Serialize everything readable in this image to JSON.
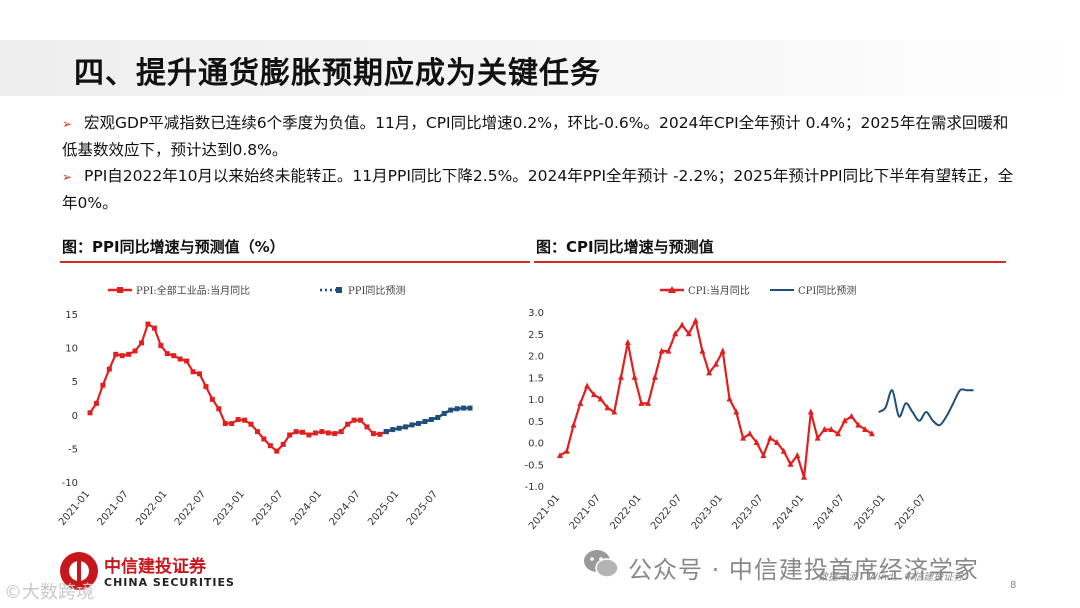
{
  "title": "四、提升通货膨胀预期应成为关键任务",
  "bullets": [
    "宏观GDP平减指数已连续6个季度为负值。11月，CPI同比增速0.2%，环比-0.6%。2024年CPI全年预计 0.4%；2025年在需求回暖和低基数效应下，预计达到0.8%。",
    "PPI自2022年10月以来始终未能转正。11月PPI同比下降2.5%。2024年PPI全年预计 -2.2%；2025年预计PPI同比下半年有望转正，全年0%。"
  ],
  "colors": {
    "accent_red": "#d42a1f",
    "forecast_blue": "#1f4e79",
    "logo_red": "#c8161d"
  },
  "chart_data": [
    {
      "type": "line",
      "title": "图：PPI同比增速与预测值（%）",
      "ylim": [
        -10,
        15
      ],
      "yticks": [
        "15",
        "10",
        "5",
        "0",
        "-5",
        "-10"
      ],
      "ytick_values": [
        15,
        10,
        5,
        0,
        -5,
        -10
      ],
      "xticks": [
        "2021-01",
        "2021-07",
        "2022-01",
        "2022-07",
        "2023-01",
        "2023-07",
        "2024-01",
        "2024-07",
        "2025-01",
        "2025-07"
      ],
      "xtick_index": [
        0,
        6,
        12,
        18,
        24,
        30,
        36,
        42,
        48,
        54
      ],
      "n_months": 60,
      "legend_placement": "top",
      "grid": false,
      "series": [
        {
          "name": "PPI:全部工业品:当月同比",
          "color": "#e02020",
          "style": "solid-square",
          "start_index": 0,
          "values": [
            0.3,
            1.7,
            4.4,
            6.8,
            9.0,
            8.8,
            9.0,
            9.5,
            10.7,
            13.5,
            12.9,
            10.3,
            9.1,
            8.8,
            8.3,
            8.0,
            6.4,
            6.1,
            4.2,
            2.3,
            0.9,
            -1.3,
            -1.3,
            -0.7,
            -0.8,
            -1.4,
            -2.5,
            -3.6,
            -4.6,
            -5.4,
            -4.4,
            -3.0,
            -2.5,
            -2.6,
            -3.0,
            -2.7,
            -2.5,
            -2.7,
            -2.8,
            -2.5,
            -1.4,
            -0.8,
            -0.8,
            -1.8,
            -2.8,
            -2.9,
            -2.5
          ]
        },
        {
          "name": "PPI同比预测",
          "color": "#1f4e79",
          "style": "dotted-square",
          "start_index": 46,
          "values": [
            -2.5,
            -2.2,
            -2.0,
            -1.8,
            -1.5,
            -1.3,
            -1.0,
            -0.7,
            -0.4,
            0.2,
            0.7,
            0.9,
            1.0,
            1.0
          ]
        }
      ]
    },
    {
      "type": "line",
      "title": "图：CPI同比增速与预测值",
      "ylim": [
        -1.0,
        3.0
      ],
      "yticks": [
        "3.0",
        "2.5",
        "2.0",
        "1.5",
        "1.0",
        "0.5",
        "0.0",
        "-0.5",
        "-1.0"
      ],
      "ytick_values": [
        3.0,
        2.5,
        2.0,
        1.5,
        1.0,
        0.5,
        0.0,
        -0.5,
        -1.0
      ],
      "xticks": [
        "2021-01",
        "2021-07",
        "2022-01",
        "2022-07",
        "2023-01",
        "2023-07",
        "2024-01",
        "2024-07",
        "2025-01",
        "2025-07"
      ],
      "xtick_index": [
        0,
        6,
        12,
        18,
        24,
        30,
        36,
        42,
        48,
        54
      ],
      "n_months": 60,
      "legend_placement": "top",
      "grid": false,
      "series": [
        {
          "name": "CPI:当月同比",
          "color": "#e02020",
          "style": "solid-triangle",
          "start_index": 0,
          "values": [
            -0.3,
            -0.2,
            0.4,
            0.9,
            1.3,
            1.1,
            1.0,
            0.8,
            0.7,
            1.5,
            2.3,
            1.5,
            0.9,
            0.9,
            1.5,
            2.1,
            2.1,
            2.5,
            2.7,
            2.5,
            2.8,
            2.1,
            1.6,
            1.8,
            2.1,
            1.0,
            0.7,
            0.1,
            0.2,
            0.0,
            -0.3,
            0.1,
            0.0,
            -0.2,
            -0.5,
            -0.3,
            -0.8,
            0.7,
            0.1,
            0.3,
            0.3,
            0.2,
            0.5,
            0.6,
            0.4,
            0.3,
            0.2
          ]
        },
        {
          "name": "CPI同比预测",
          "color": "#1f4e79",
          "style": "smooth",
          "start_index": 47,
          "values": [
            0.7,
            0.8,
            1.2,
            0.6,
            0.9,
            0.7,
            0.5,
            0.7,
            0.5,
            0.4,
            0.6,
            0.9,
            1.2,
            1.2,
            1.2
          ]
        }
      ]
    }
  ],
  "logo": {
    "zh": "中信建投证券",
    "en": "CHINA SECURITIES"
  },
  "watermark": "公众号 · 中信建投首席经济学家",
  "source": "数据来源：Wind，中信建投证券",
  "page_number": "8",
  "corner_watermark": "©大数跨境"
}
